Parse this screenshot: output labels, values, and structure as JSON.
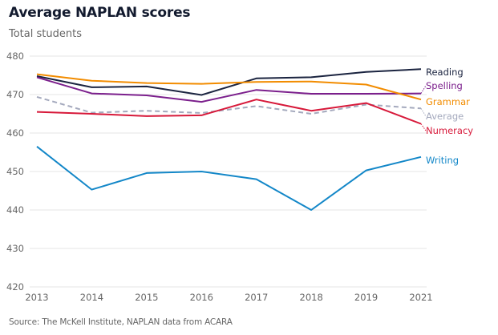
{
  "chart_data": {
    "type": "line",
    "title": "Average NAPLAN scores",
    "subtitle": "Total students",
    "source": "Source: The McKell Institute, NAPLAN data from ACARA",
    "xlabel": "",
    "ylabel": "",
    "x": [
      "2013",
      "2014",
      "2015",
      "2016",
      "2017",
      "2018",
      "2019",
      "2021"
    ],
    "ylim": [
      420,
      480
    ],
    "yticks": [
      420,
      430,
      440,
      450,
      460,
      470,
      480
    ],
    "grid": true,
    "legend": "inline-right",
    "series": [
      {
        "name": "Reading",
        "color": "#1b2440",
        "dashed": false,
        "values": [
          474.8,
          471.9,
          472.1,
          469.9,
          474.2,
          474.5,
          475.9,
          476.6
        ]
      },
      {
        "name": "Spelling",
        "color": "#7b1f8c",
        "dashed": false,
        "values": [
          474.5,
          470.3,
          469.8,
          468.1,
          471.2,
          470.2,
          470.2,
          470.3
        ]
      },
      {
        "name": "Grammar",
        "color": "#f28c00",
        "dashed": false,
        "values": [
          475.3,
          473.6,
          473.0,
          472.8,
          473.3,
          473.4,
          472.6,
          468.7
        ]
      },
      {
        "name": "Average",
        "color": "#a4a9bd",
        "dashed": true,
        "values": [
          469.4,
          465.3,
          465.8,
          465.2,
          467.0,
          465.0,
          467.4,
          466.4
        ]
      },
      {
        "name": "Numeracy",
        "color": "#d7193a",
        "dashed": false,
        "values": [
          465.5,
          465.0,
          464.4,
          464.6,
          468.7,
          465.8,
          467.8,
          462.4
        ]
      },
      {
        "name": "Writing",
        "color": "#1387c8",
        "dashed": false,
        "values": [
          456.5,
          445.3,
          449.6,
          450.0,
          448.0,
          440.0,
          450.3,
          453.8
        ]
      }
    ]
  }
}
